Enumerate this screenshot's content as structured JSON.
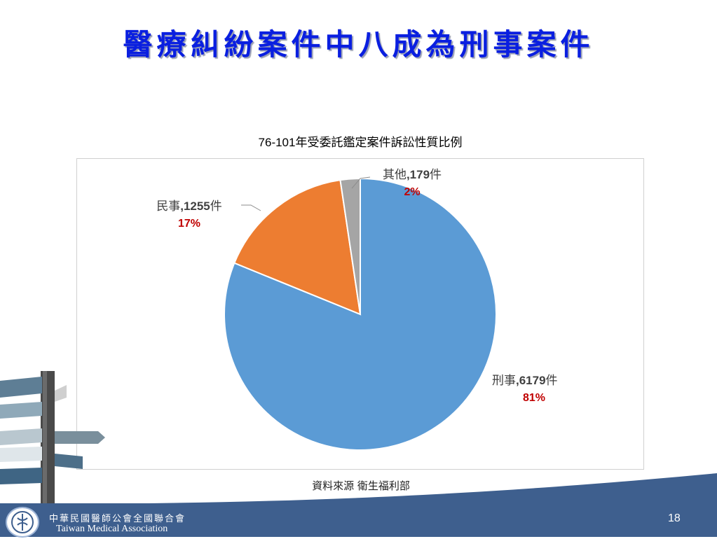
{
  "slide": {
    "title": "醫療糾紛案件中八成為刑事案件",
    "source": "資料來源 衛生福利部",
    "page_number": "18"
  },
  "footer": {
    "org_zh": "中華民國醫師公會全國聯合會",
    "org_en": "Taiwan Medical Association"
  },
  "colors": {
    "title": "#0a1fe0",
    "footer_bg": "#3e5f8e",
    "percent_text": "#c00000"
  },
  "chart_data": {
    "type": "pie",
    "title": "76-101年受委託鑑定案件訴訟性質比例",
    "unit": "件",
    "slices": [
      {
        "name": "刑事",
        "value": 6179,
        "percent": "81%",
        "color": "#5b9bd5"
      },
      {
        "name": "民事",
        "value": 1255,
        "percent": "17%",
        "color": "#ed7d31"
      },
      {
        "name": "其他",
        "value": 179,
        "percent": "2%",
        "color": "#a5a5a5"
      }
    ]
  }
}
